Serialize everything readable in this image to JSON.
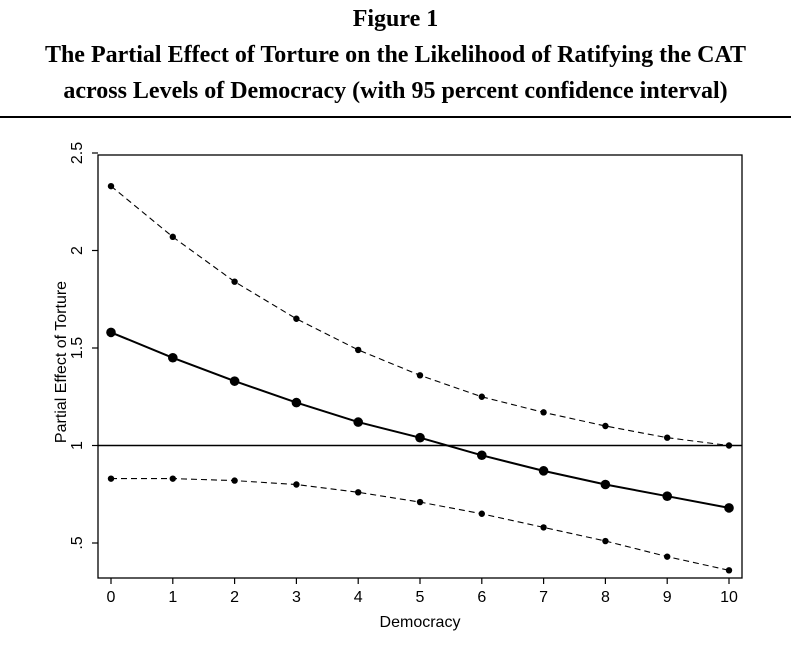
{
  "figure": {
    "number_label": "Figure 1",
    "title_line1": "The Partial Effect of Torture on the Likelihood of Ratifying the CAT",
    "title_line2": "across Levels of Democracy (with 95 percent confidence interval)"
  },
  "chart_data": {
    "type": "line",
    "xlabel": "Democracy",
    "ylabel": "Partial Effect of Torture",
    "xlim": [
      0,
      10
    ],
    "ylim": [
      0.35,
      2.55
    ],
    "x_ticks": [
      0,
      1,
      2,
      3,
      4,
      5,
      6,
      7,
      8,
      9,
      10
    ],
    "x_tick_labels": [
      "0",
      "1",
      "2",
      "3",
      "4",
      "5",
      "6",
      "7",
      "8",
      "9",
      "10"
    ],
    "y_ticks": [
      0.5,
      1,
      1.5,
      2,
      2.5
    ],
    "y_tick_labels": [
      ".5",
      "1",
      "1.5",
      "2",
      "2.5"
    ],
    "reference_line": 1,
    "x": [
      0,
      1,
      2,
      3,
      4,
      5,
      6,
      7,
      8,
      9,
      10
    ],
    "series": [
      {
        "role": "estimate",
        "style": "solid",
        "values": [
          1.58,
          1.45,
          1.33,
          1.22,
          1.12,
          1.04,
          0.95,
          0.87,
          0.8,
          0.74,
          0.68
        ]
      },
      {
        "role": "upper",
        "style": "dashed",
        "values": [
          2.33,
          2.07,
          1.84,
          1.65,
          1.49,
          1.36,
          1.25,
          1.17,
          1.1,
          1.04,
          1.0
        ]
      },
      {
        "role": "lower",
        "style": "dashed",
        "values": [
          0.83,
          0.83,
          0.82,
          0.8,
          0.76,
          0.71,
          0.65,
          0.58,
          0.51,
          0.43,
          0.36
        ]
      }
    ],
    "grid": false,
    "legend": "none"
  }
}
